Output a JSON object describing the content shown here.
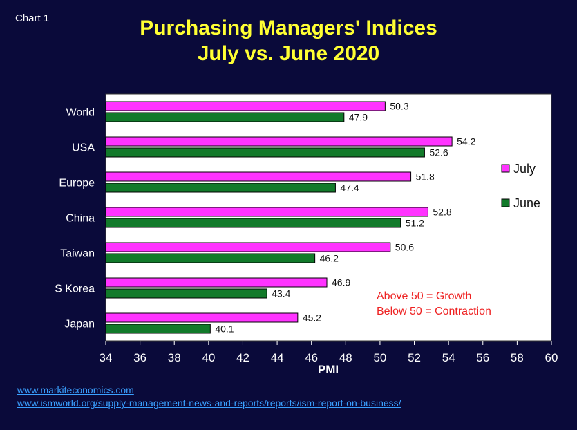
{
  "chart_label": "Chart 1",
  "title_line1": "Purchasing Managers' Indices",
  "title_line2": "July vs. June 2020",
  "links": [
    "www.markiteconomics.com",
    "www.ismworld.org/supply-management-news-and-reports/reports/ism-report-on-business/"
  ],
  "chart_data": {
    "type": "bar",
    "orientation": "horizontal",
    "categories": [
      "World",
      "USA",
      "Europe",
      "China",
      "Taiwan",
      "S Korea",
      "Japan"
    ],
    "series": [
      {
        "name": "July",
        "color": "#ff33ff",
        "values": [
          50.3,
          54.2,
          51.8,
          52.8,
          50.6,
          46.9,
          45.2
        ]
      },
      {
        "name": "June",
        "color": "#127a2a",
        "values": [
          47.9,
          52.6,
          47.4,
          51.2,
          46.2,
          43.4,
          40.1
        ]
      }
    ],
    "xlabel": "PMI",
    "xlim": [
      34,
      60
    ],
    "xticks": [
      34,
      36,
      38,
      40,
      42,
      44,
      46,
      48,
      50,
      52,
      54,
      56,
      58,
      60
    ],
    "grid": false,
    "legend_position": "right",
    "annotations": [
      "Above 50 = Growth",
      "Below 50 = Contraction"
    ],
    "annotation_color": "#ee2222"
  }
}
